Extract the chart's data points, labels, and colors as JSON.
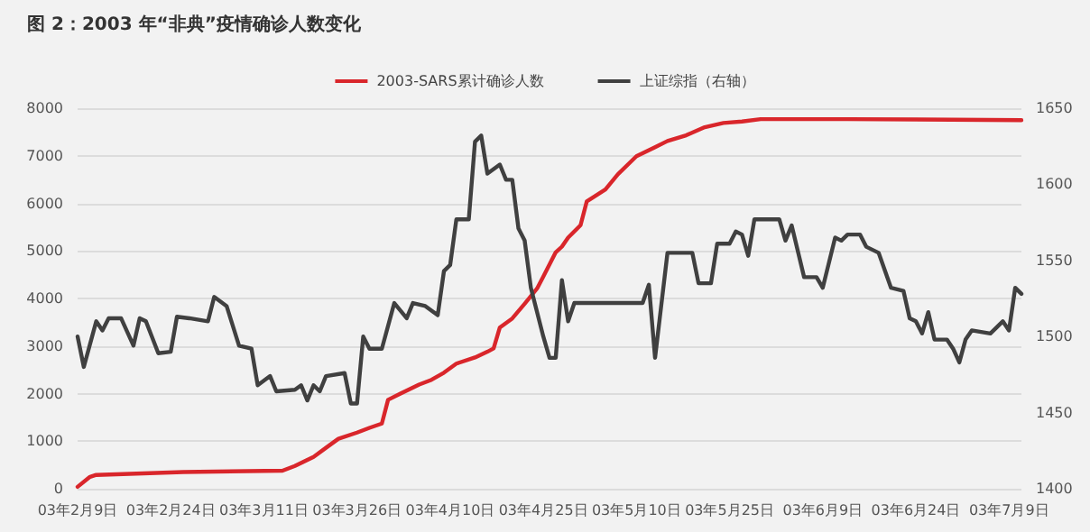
{
  "chart_data": {
    "type": "line",
    "title": "图 2：2003 年“非典”疫情确诊人数变化",
    "series": [
      {
        "name": "2003-SARS累计确诊人数",
        "color": "#d9262b",
        "x": [
          "--02-09",
          "--02-11",
          "--02-12",
          "--02-26",
          "--03-14",
          "--03-16",
          "--03-19",
          "--03-21",
          "--03-23",
          "--03-26",
          "--03-28",
          "--03-30",
          "--03-31",
          "--04-02",
          "--04-05",
          "--04-07",
          "--04-09",
          "--04-11",
          "--04-14",
          "--04-16",
          "--04-17",
          "--04-18",
          "--04-20",
          "--04-22",
          "--04-24",
          "--04-25",
          "--04-27",
          "--04-28",
          "--04-29",
          "--05-01",
          "--05-02",
          "--05-05",
          "--05-07",
          "--05-10",
          "--05-13",
          "--05-15",
          "--05-18",
          "--05-21",
          "--05-24",
          "--05-27",
          "--05-30",
          "--06-13",
          "--07-11"
        ],
        "values": [
          40,
          250,
          290,
          350,
          380,
          480,
          670,
          860,
          1050,
          1180,
          1280,
          1370,
          1870,
          2000,
          2190,
          2290,
          2440,
          2630,
          2760,
          2880,
          2950,
          3390,
          3580,
          3890,
          4210,
          4460,
          4970,
          5090,
          5280,
          5540,
          6040,
          6290,
          6610,
          6990,
          7180,
          7310,
          7430,
          7600,
          7690,
          7720,
          7770,
          7770,
          7750
        ]
      },
      {
        "name": "上证综指（右轴）",
        "color": "#404040",
        "axis": "y2",
        "x": [
          "--02-09",
          "--02-10",
          "--02-12",
          "--02-13",
          "--02-14",
          "--02-16",
          "--02-18",
          "--02-19",
          "--02-20",
          "--02-22",
          "--02-24",
          "--02-25",
          "--02-27",
          "--03-02",
          "--03-03",
          "--03-05",
          "--03-07",
          "--03-09",
          "--03-10",
          "--03-12",
          "--03-13",
          "--03-16",
          "--03-17",
          "--03-18",
          "--03-19",
          "--03-20",
          "--03-21",
          "--03-24",
          "--03-25",
          "--03-26",
          "--03-27",
          "--03-28",
          "--03-30",
          "--04-01",
          "--04-03",
          "--04-04",
          "--04-06",
          "--04-08",
          "--04-09",
          "--04-10",
          "--04-11",
          "--04-13",
          "--04-14",
          "--04-15",
          "--04-16",
          "--04-18",
          "--04-19",
          "--04-20",
          "--04-21",
          "--04-22",
          "--04-23",
          "--04-25",
          "--04-26",
          "--04-27",
          "--04-28",
          "--04-29",
          "--04-30",
          "--05-11",
          "--05-12",
          "--05-13",
          "--05-15",
          "--05-19",
          "--05-20",
          "--05-22",
          "--05-23",
          "--05-25",
          "--05-26",
          "--05-27",
          "--05-28",
          "--05-29",
          "--06-02",
          "--06-03",
          "--06-04",
          "--06-06",
          "--06-08",
          "--06-09",
          "--06-11",
          "--06-12",
          "--06-13",
          "--06-15",
          "--06-16",
          "--06-18",
          "--06-20",
          "--06-22",
          "--06-23",
          "--06-24",
          "--06-25",
          "--06-26",
          "--06-27",
          "--06-29",
          "--06-30",
          "--07-01",
          "--07-02",
          "--07-03",
          "--07-06",
          "--07-08",
          "--07-09",
          "--07-10",
          "--07-11"
        ],
        "values": [
          1500,
          1480,
          1510,
          1504,
          1512,
          1512,
          1494,
          1512,
          1510,
          1489,
          1490,
          1513,
          1512,
          1510,
          1526,
          1520,
          1494,
          1492,
          1468,
          1474,
          1464,
          1465,
          1468,
          1458,
          1468,
          1464,
          1474,
          1476,
          1456,
          1456,
          1500,
          1492,
          1492,
          1522,
          1512,
          1522,
          1520,
          1514,
          1543,
          1547,
          1577,
          1577,
          1628,
          1632,
          1607,
          1613,
          1603,
          1603,
          1571,
          1563,
          1532,
          1500,
          1486,
          1486,
          1537,
          1510,
          1522,
          1522,
          1534,
          1486,
          1555,
          1555,
          1535,
          1535,
          1561,
          1561,
          1569,
          1567,
          1553,
          1577,
          1577,
          1563,
          1573,
          1539,
          1539,
          1532,
          1565,
          1563,
          1567,
          1567,
          1559,
          1555,
          1532,
          1530,
          1512,
          1510,
          1502,
          1516,
          1498,
          1498,
          1492,
          1483,
          1498,
          1504,
          1502,
          1510,
          1504,
          1532,
          1528
        ]
      }
    ],
    "xlim": [
      "--02-09",
      "--07-11"
    ],
    "xticks": [
      {
        "value": "--02-09",
        "label": "03年2月9日"
      },
      {
        "value": "--02-24",
        "label": "03年2月24日"
      },
      {
        "value": "--03-11",
        "label": "03年3月11日"
      },
      {
        "value": "--03-26",
        "label": "03年3月26日"
      },
      {
        "value": "--04-10",
        "label": "03年4月10日"
      },
      {
        "value": "--04-25",
        "label": "03年4月25日"
      },
      {
        "value": "--05-10",
        "label": "03年5月10日"
      },
      {
        "value": "--05-25",
        "label": "03年5月25日"
      },
      {
        "value": "--06-09",
        "label": "03年6月9日"
      },
      {
        "value": "--06-24",
        "label": "03年6月24日"
      },
      {
        "value": "--07-09",
        "label": "03年7月9日"
      }
    ],
    "ylim": [
      0,
      8000
    ],
    "yticks": [
      0,
      1000,
      2000,
      3000,
      4000,
      5000,
      6000,
      7000,
      8000
    ],
    "y2lim": [
      1400,
      1650
    ],
    "y2ticks": [
      1400,
      1450,
      1500,
      1550,
      1600,
      1650
    ],
    "grid": "y",
    "legend": "top",
    "marker": "none",
    "line_style": "solid"
  }
}
